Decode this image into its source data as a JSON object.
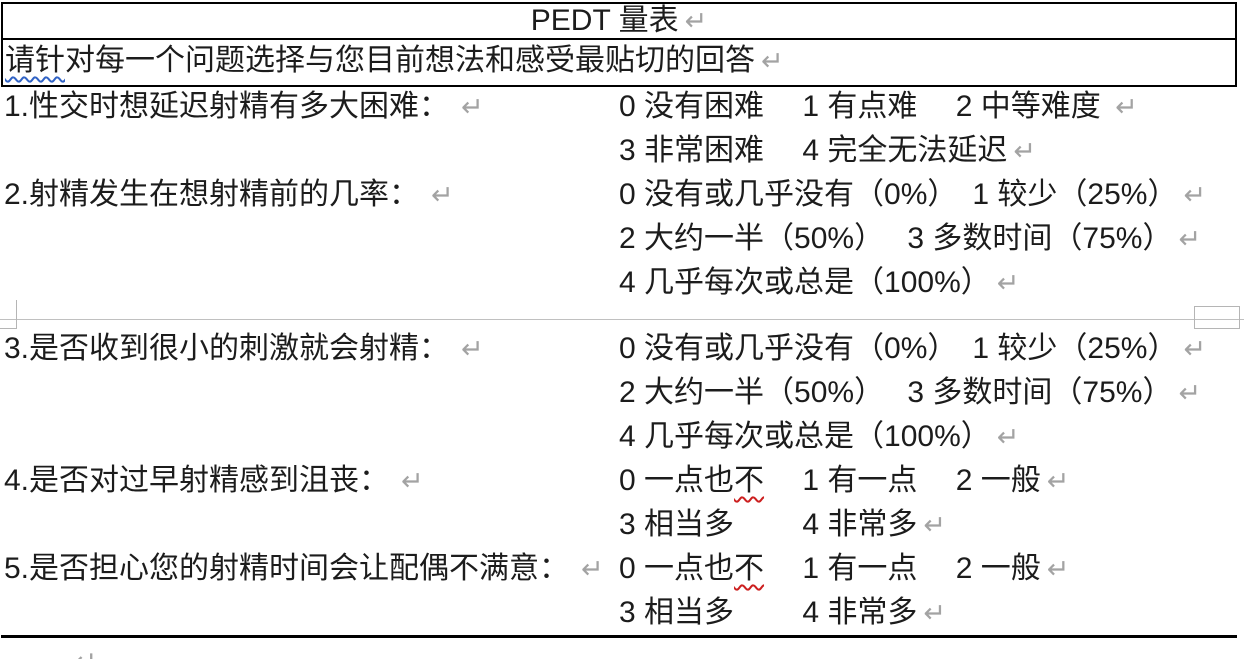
{
  "document": {
    "title": "PEDT 量表",
    "instruction": {
      "segments": [
        {
          "t": "请针",
          "u": "blue"
        },
        {
          "t": "对每一个问题选择与您目前想法和感受最贴切的回答"
        }
      ]
    },
    "questions": [
      {
        "label": "1.性交时想延迟射精有多大困难：",
        "option_lines": [
          [
            {
              "t": "0 没有困难　 1 有点难　 2 中等难度 "
            }
          ],
          [
            {
              "t": "3 非常困难　 4 完全无法延迟"
            }
          ]
        ]
      },
      {
        "label": "2.射精发生在想射精前的几率：",
        "option_lines": [
          [
            {
              "t": "0 没有或几乎没有（0%）　1 较少（25%）"
            }
          ],
          [
            {
              "t": "2 大约一半（50%）　 3 多数时间（75%）"
            }
          ],
          [
            {
              "t": "4 几乎每次或总是（100%）"
            }
          ]
        ]
      },
      {
        "label": "3.是否收到很小的刺激就会射精：",
        "option_lines": [
          [
            {
              "t": "0 没有或几乎没有（0%）　1 较少（25%）"
            }
          ],
          [
            {
              "t": "2 大约一半（50%）　 3 多数时间（75%）"
            }
          ],
          [
            {
              "t": "4 几乎每次或总是（100%）"
            }
          ]
        ]
      },
      {
        "label": "4.是否对过早射精感到沮丧：",
        "option_lines": [
          [
            {
              "t": "0 一点也"
            },
            {
              "t": "不",
              "u": "red"
            },
            {
              "t": "　 1 有一点　 2 一般"
            }
          ],
          [
            {
              "t": "3 相当多　　 4 非常多"
            }
          ]
        ]
      },
      {
        "label": "5.是否担心您的射精时间会让配偶不满意：",
        "option_lines": [
          [
            {
              "t": "0 一点也"
            },
            {
              "t": "不",
              "u": "red"
            },
            {
              "t": "　 1 有一点　 2 一般"
            }
          ],
          [
            {
              "t": "3 相当多　　 4 非常多"
            }
          ]
        ]
      }
    ],
    "marks": {
      "return_mark": "↵"
    },
    "colors": {
      "border_black": "#000000",
      "return_gray": "#a3a3a3",
      "boundary_gray": "#c0c0c0",
      "squiggle_red": "#cc1f1f",
      "squiggle_blue": "#3163c5"
    }
  }
}
